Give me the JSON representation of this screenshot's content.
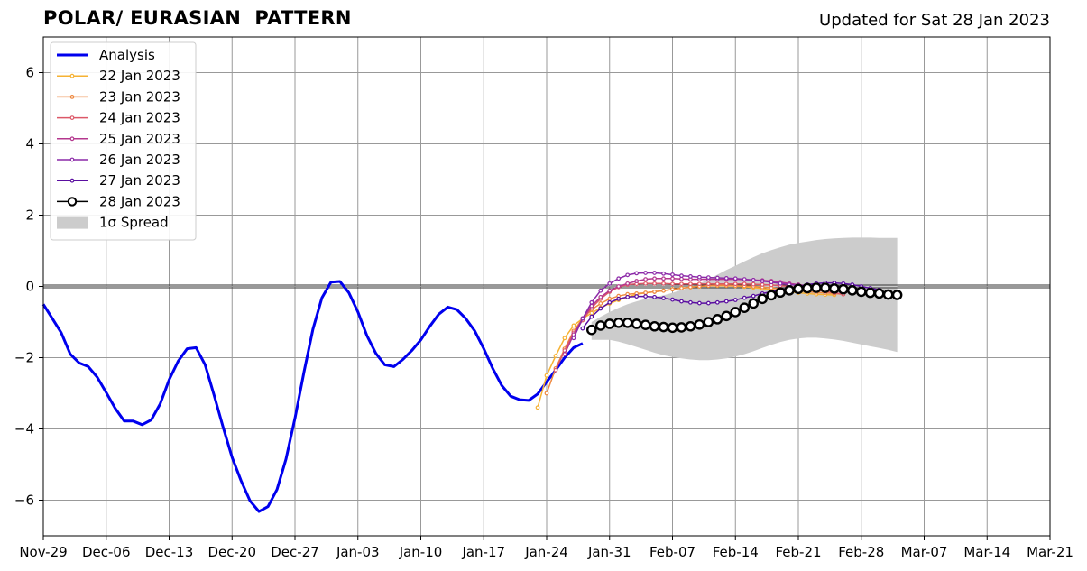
{
  "header": {
    "title": "POLAR/ EURASIAN  PATTERN",
    "updated": "Updated for Sat 28 Jan 2023"
  },
  "chart_data": {
    "type": "line",
    "title": "POLAR/ EURASIAN  PATTERN",
    "subtitle": "Updated for Sat 28 Jan 2023",
    "xlabel": "",
    "ylabel": "",
    "x_axis": {
      "unit": "date",
      "start": "2022-11-29",
      "end": "2023-03-21",
      "tick_labels": [
        "Nov-29",
        "Dec-06",
        "Dec-13",
        "Dec-20",
        "Dec-27",
        "Jan-03",
        "Jan-10",
        "Jan-17",
        "Jan-24",
        "Jan-31",
        "Feb-07",
        "Feb-14",
        "Feb-21",
        "Feb-28",
        "Mar-07",
        "Mar-14",
        "Mar-21"
      ],
      "tick_dates": [
        "2022-11-29",
        "2022-12-06",
        "2022-12-13",
        "2022-12-20",
        "2022-12-27",
        "2023-01-03",
        "2023-01-10",
        "2023-01-17",
        "2023-01-24",
        "2023-01-31",
        "2023-02-07",
        "2023-02-14",
        "2023-02-21",
        "2023-02-28",
        "2023-03-07",
        "2023-03-14",
        "2023-03-21"
      ]
    },
    "ylim": [
      -7,
      7
    ],
    "y_ticks": [
      -6,
      -4,
      -2,
      0,
      2,
      4,
      6
    ],
    "y_tick_labels": [
      "−6",
      "−4",
      "−2",
      "0",
      "2",
      "4",
      "6"
    ],
    "grid": true,
    "legend_position": "top-left",
    "colors": {
      "analysis": "#0000ee",
      "grid": "#999999",
      "spread": "#cccccc",
      "forecast_28": "#000000"
    },
    "series": [
      {
        "name": "Analysis",
        "kind": "analysis",
        "color": "#0000ee",
        "start": "2022-11-29",
        "values": [
          -0.5,
          -0.9,
          -1.3,
          -1.9,
          -2.15,
          -2.25,
          -2.55,
          -2.98,
          -3.42,
          -3.78,
          -3.78,
          -3.88,
          -3.75,
          -3.3,
          -2.62,
          -2.1,
          -1.75,
          -1.72,
          -2.2,
          -3.05,
          -3.95,
          -4.8,
          -5.45,
          -6.02,
          -6.32,
          -6.18,
          -5.7,
          -4.85,
          -3.7,
          -2.4,
          -1.2,
          -0.32,
          0.12,
          0.14,
          -0.18,
          -0.72,
          -1.38,
          -1.88,
          -2.2,
          -2.25,
          -2.05,
          -1.8,
          -1.5,
          -1.12,
          -0.78,
          -0.58,
          -0.65,
          -0.9,
          -1.25,
          -1.75,
          -2.3,
          -2.78,
          -3.08,
          -3.18,
          -3.2,
          -3.02,
          -2.68,
          -2.35,
          -2.0,
          -1.72,
          -1.6
        ]
      },
      {
        "name": "22 Jan 2023",
        "kind": "forecast",
        "color": "#f6b233",
        "start": "2023-01-23",
        "values": [
          -3.4,
          -2.5,
          -1.95,
          -1.45,
          -1.1,
          -0.9,
          -0.75,
          -0.6,
          -0.48,
          -0.38,
          -0.3,
          -0.22,
          -0.18,
          -0.15,
          -0.12,
          -0.08,
          -0.05,
          -0.02,
          0.0,
          0.02,
          0.02,
          0.02,
          0.01,
          -0.01,
          -0.03,
          -0.06,
          -0.09,
          -0.12,
          -0.15,
          -0.18,
          -0.2,
          -0.22,
          -0.23,
          -0.24
        ]
      },
      {
        "name": "23 Jan 2023",
        "kind": "forecast",
        "color": "#ee8940",
        "start": "2023-01-24",
        "values": [
          -3.0,
          -2.3,
          -1.75,
          -1.25,
          -0.9,
          -0.65,
          -0.48,
          -0.35,
          -0.27,
          -0.22,
          -0.2,
          -0.18,
          -0.15,
          -0.12,
          -0.08,
          -0.05,
          -0.02,
          0.0,
          0.02,
          0.03,
          0.03,
          0.02,
          0.01,
          0.0,
          -0.02,
          -0.04,
          -0.07,
          -0.1,
          -0.13,
          -0.15,
          -0.17,
          -0.18,
          -0.2,
          -0.22
        ]
      },
      {
        "name": "24 Jan 2023",
        "kind": "forecast",
        "color": "#dc5868",
        "start": "2023-01-25",
        "values": [
          -2.35,
          -1.8,
          -1.3,
          -0.95,
          -0.6,
          -0.35,
          -0.15,
          -0.02,
          0.05,
          0.07,
          0.08,
          0.08,
          0.08,
          0.07,
          0.07,
          0.07,
          0.07,
          0.07,
          0.07,
          0.07,
          0.07,
          0.07,
          0.06,
          0.05,
          0.04,
          0.02,
          0.0,
          -0.03,
          -0.07,
          -0.1,
          -0.14,
          -0.18,
          -0.22
        ]
      },
      {
        "name": "25 Jan 2023",
        "kind": "forecast",
        "color": "#b4378e",
        "start": "2023-01-26",
        "values": [
          -1.9,
          -1.35,
          -0.9,
          -0.55,
          -0.3,
          -0.12,
          0.0,
          0.08,
          0.15,
          0.2,
          0.22,
          0.22,
          0.22,
          0.21,
          0.2,
          0.2,
          0.2,
          0.2,
          0.2,
          0.2,
          0.19,
          0.18,
          0.17,
          0.15,
          0.12,
          0.08,
          0.05,
          0.02,
          0.0,
          -0.02,
          -0.05,
          -0.08,
          -0.11
        ]
      },
      {
        "name": "26 Jan 2023",
        "kind": "forecast",
        "color": "#8c2aa8",
        "start": "2023-01-27",
        "values": [
          -1.45,
          -0.9,
          -0.45,
          -0.12,
          0.08,
          0.22,
          0.32,
          0.37,
          0.38,
          0.38,
          0.36,
          0.33,
          0.3,
          0.28,
          0.26,
          0.25,
          0.24,
          0.23,
          0.22,
          0.2,
          0.18,
          0.15,
          0.12,
          0.08,
          0.05,
          0.03,
          0.0,
          -0.02,
          -0.04,
          -0.06,
          -0.08,
          -0.1,
          -0.12
        ]
      },
      {
        "name": "27 Jan 2023",
        "kind": "forecast",
        "color": "#5a0ea0",
        "start": "2023-01-28",
        "values": [
          -1.18,
          -0.85,
          -0.62,
          -0.45,
          -0.35,
          -0.3,
          -0.28,
          -0.28,
          -0.3,
          -0.33,
          -0.37,
          -0.42,
          -0.45,
          -0.47,
          -0.47,
          -0.45,
          -0.42,
          -0.38,
          -0.32,
          -0.27,
          -0.2,
          -0.15,
          -0.1,
          -0.05,
          0.0,
          0.05,
          0.08,
          0.1,
          0.1,
          0.08,
          0.05,
          0.0,
          -0.05,
          -0.1
        ]
      },
      {
        "name": "28 Jan 2023",
        "kind": "forecast_main",
        "color": "#000000",
        "start": "2023-01-29",
        "values": [
          -1.22,
          -1.1,
          -1.05,
          -1.02,
          -1.02,
          -1.05,
          -1.08,
          -1.12,
          -1.14,
          -1.16,
          -1.15,
          -1.12,
          -1.07,
          -1.0,
          -0.92,
          -0.83,
          -0.72,
          -0.6,
          -0.48,
          -0.35,
          -0.25,
          -0.17,
          -0.11,
          -0.07,
          -0.05,
          -0.04,
          -0.04,
          -0.06,
          -0.08,
          -0.11,
          -0.15,
          -0.18,
          -0.2,
          -0.23,
          -0.24
        ]
      }
    ],
    "spread": {
      "name": "1σ Spread",
      "color": "#cccccc",
      "start": "2023-01-29",
      "upper": [
        -1.0,
        -0.85,
        -0.72,
        -0.6,
        -0.5,
        -0.42,
        -0.35,
        -0.3,
        -0.25,
        -0.18,
        -0.1,
        -0.02,
        0.08,
        0.2,
        0.33,
        0.46,
        0.58,
        0.7,
        0.82,
        0.93,
        1.02,
        1.1,
        1.17,
        1.22,
        1.26,
        1.3,
        1.33,
        1.35,
        1.36,
        1.37,
        1.37,
        1.37,
        1.36,
        1.36,
        1.36
      ],
      "lower": [
        -1.5,
        -1.5,
        -1.5,
        -1.55,
        -1.62,
        -1.7,
        -1.78,
        -1.86,
        -1.93,
        -1.98,
        -2.02,
        -2.05,
        -2.07,
        -2.07,
        -2.05,
        -2.02,
        -1.97,
        -1.9,
        -1.82,
        -1.73,
        -1.64,
        -1.56,
        -1.5,
        -1.46,
        -1.44,
        -1.44,
        -1.46,
        -1.49,
        -1.53,
        -1.58,
        -1.63,
        -1.68,
        -1.73,
        -1.78,
        -1.84
      ]
    },
    "legend": [
      {
        "label": "Analysis",
        "kind": "analysis",
        "color": "#0000ee"
      },
      {
        "label": "22 Jan 2023",
        "kind": "forecast",
        "color": "#f6b233"
      },
      {
        "label": "23 Jan 2023",
        "kind": "forecast",
        "color": "#ee8940"
      },
      {
        "label": "24 Jan 2023",
        "kind": "forecast",
        "color": "#dc5868"
      },
      {
        "label": "25 Jan 2023",
        "kind": "forecast",
        "color": "#b4378e"
      },
      {
        "label": "26 Jan 2023",
        "kind": "forecast",
        "color": "#8c2aa8"
      },
      {
        "label": "27 Jan 2023",
        "kind": "forecast",
        "color": "#5a0ea0"
      },
      {
        "label": "28 Jan 2023",
        "kind": "forecast_main",
        "color": "#000000"
      },
      {
        "label": "1σ Spread",
        "kind": "spread",
        "color": "#cccccc"
      }
    ]
  }
}
